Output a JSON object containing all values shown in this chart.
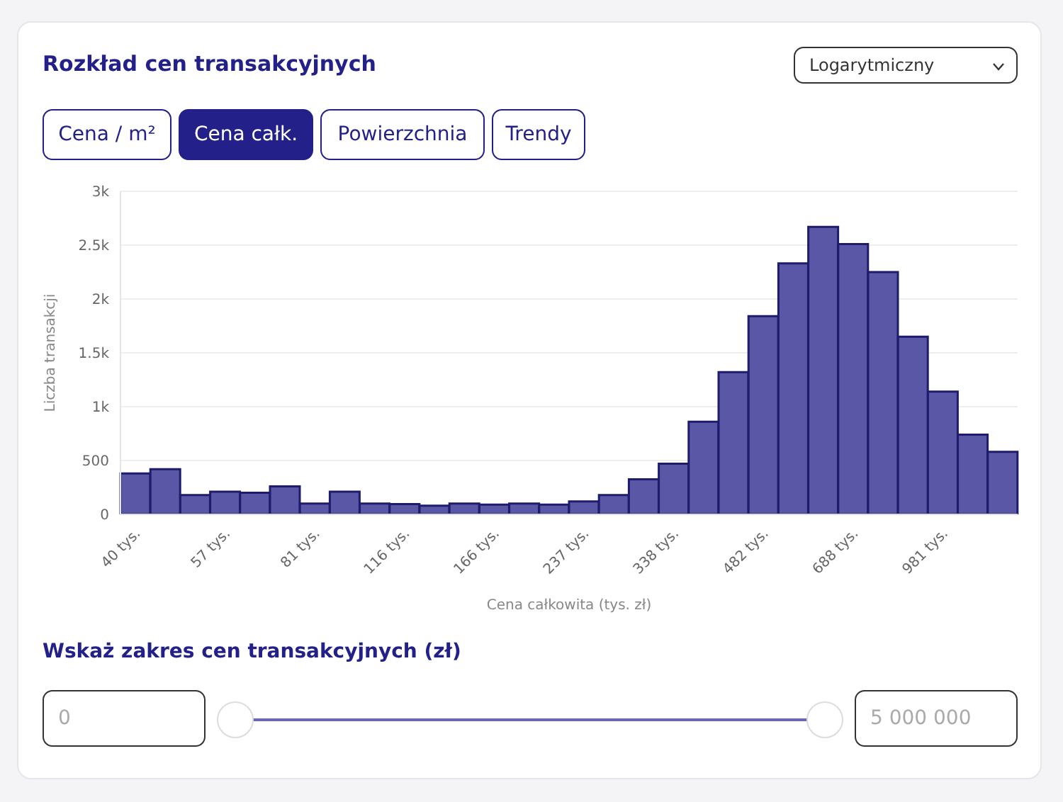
{
  "chart_data": {
    "type": "bar",
    "title": "Rozkład cen transakcyjnych",
    "xlabel": "Cena całkowita (tys. zł)",
    "ylabel": "Liczba transakcji",
    "categories": [
      "40 tys.",
      null,
      null,
      "57 tys.",
      null,
      null,
      "81 tys.",
      null,
      null,
      "116 tys.",
      null,
      null,
      "166 tys.",
      null,
      null,
      "237 tys.",
      null,
      null,
      "338 tys.",
      null,
      null,
      "482 tys.",
      null,
      null,
      "688 tys.",
      null,
      null,
      "981 tys.",
      null,
      null
    ],
    "values": [
      380,
      420,
      180,
      210,
      200,
      260,
      100,
      210,
      100,
      95,
      80,
      100,
      90,
      100,
      90,
      120,
      180,
      325,
      470,
      860,
      1320,
      1840,
      2330,
      2670,
      2510,
      2250,
      1650,
      1140,
      740,
      580
    ],
    "color": "#5a58a6",
    "ylim": [
      0,
      3000
    ],
    "yticks": [
      0,
      {
        "value": 500,
        "label": "500"
      },
      {
        "value": 1000,
        "label": "1k"
      },
      {
        "value": 1500,
        "label": "1.5k"
      },
      {
        "value": 2000,
        "label": "2k"
      },
      {
        "value": 2500,
        "label": "2.5k"
      },
      {
        "value": 3000,
        "label": "3k"
      }
    ],
    "grid": "y",
    "legend": false,
    "annotations": [
      "Logarytmiczny",
      "Cena / m²",
      "Cena całk.",
      "Powierzchnia",
      "Trendy",
      "Wskaż zakres cen transakcyjnych (zł)",
      "0",
      "5 000 000"
    ]
  }
}
